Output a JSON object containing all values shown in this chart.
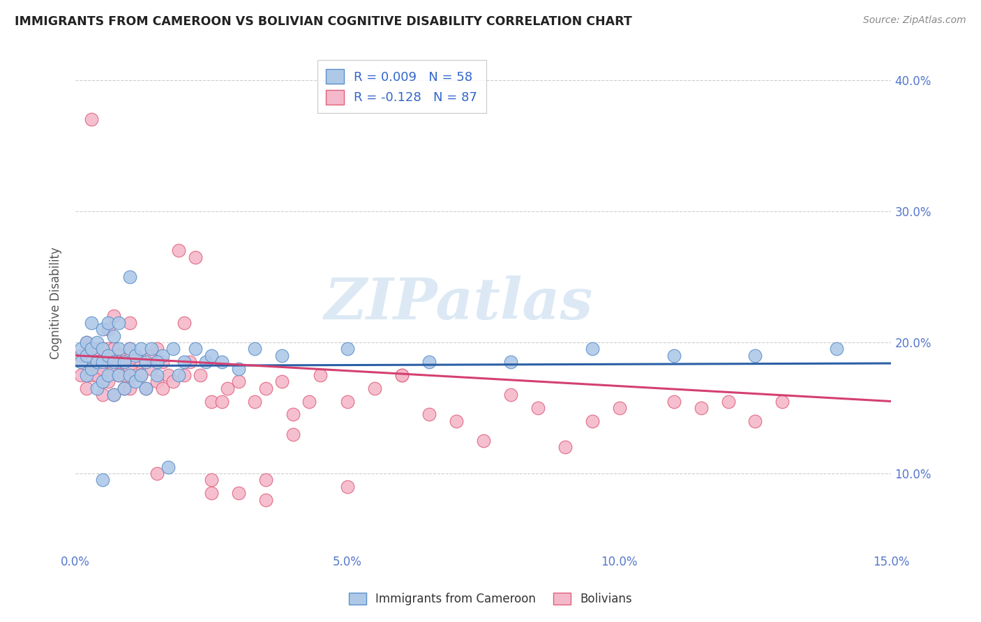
{
  "title": "IMMIGRANTS FROM CAMEROON VS BOLIVIAN COGNITIVE DISABILITY CORRELATION CHART",
  "source": "Source: ZipAtlas.com",
  "ylabel": "Cognitive Disability",
  "xlim": [
    0.0,
    0.15
  ],
  "ylim": [
    0.04,
    0.42
  ],
  "xticks": [
    0.0,
    0.05,
    0.1,
    0.15
  ],
  "xtick_labels": [
    "0.0%",
    "5.0%",
    "10.0%",
    "15.0%"
  ],
  "yticks_right": [
    0.1,
    0.2,
    0.3,
    0.4
  ],
  "ytick_labels_right": [
    "10.0%",
    "20.0%",
    "30.0%",
    "40.0%"
  ],
  "watermark": "ZIPatlas",
  "legend_r1": "R = 0.009",
  "legend_n1": "N = 58",
  "legend_r2": "R = -0.128",
  "legend_n2": "N = 87",
  "blue_color": "#aec9e8",
  "pink_color": "#f4b8cb",
  "blue_edge_color": "#5b8fc9",
  "pink_edge_color": "#e0607a",
  "blue_line_color": "#2b5fa5",
  "pink_line_color": "#d44070",
  "title_color": "#222222",
  "source_color": "#888888",
  "axis_tick_color": "#5577cc",
  "ylabel_color": "#555555",
  "background_color": "#ffffff",
  "grid_color": "#cccccc",
  "legend_r_color": "#3366cc",
  "legend_n_color": "#3366cc",
  "blue_line_y0": 0.182,
  "blue_line_y1": 0.184,
  "pink_line_y0": 0.19,
  "pink_line_y1": 0.155,
  "blue_scatter_x": [
    0.001,
    0.001,
    0.002,
    0.002,
    0.002,
    0.003,
    0.003,
    0.003,
    0.004,
    0.004,
    0.004,
    0.005,
    0.005,
    0.005,
    0.005,
    0.006,
    0.006,
    0.006,
    0.007,
    0.007,
    0.007,
    0.008,
    0.008,
    0.008,
    0.009,
    0.009,
    0.01,
    0.01,
    0.01,
    0.011,
    0.011,
    0.012,
    0.012,
    0.013,
    0.013,
    0.014,
    0.015,
    0.016,
    0.017,
    0.018,
    0.019,
    0.02,
    0.022,
    0.024,
    0.025,
    0.027,
    0.03,
    0.033,
    0.038,
    0.05,
    0.065,
    0.08,
    0.095,
    0.11,
    0.125,
    0.14,
    0.005,
    0.015
  ],
  "blue_scatter_y": [
    0.195,
    0.185,
    0.2,
    0.19,
    0.175,
    0.18,
    0.195,
    0.215,
    0.165,
    0.185,
    0.2,
    0.17,
    0.185,
    0.195,
    0.21,
    0.175,
    0.19,
    0.215,
    0.16,
    0.185,
    0.205,
    0.175,
    0.195,
    0.215,
    0.165,
    0.185,
    0.175,
    0.195,
    0.25,
    0.17,
    0.19,
    0.175,
    0.195,
    0.165,
    0.185,
    0.195,
    0.175,
    0.19,
    0.105,
    0.195,
    0.175,
    0.185,
    0.195,
    0.185,
    0.19,
    0.185,
    0.18,
    0.195,
    0.19,
    0.195,
    0.185,
    0.185,
    0.195,
    0.19,
    0.19,
    0.195,
    0.095,
    0.185
  ],
  "pink_scatter_x": [
    0.001,
    0.001,
    0.002,
    0.002,
    0.003,
    0.003,
    0.003,
    0.004,
    0.004,
    0.004,
    0.005,
    0.005,
    0.005,
    0.006,
    0.006,
    0.006,
    0.006,
    0.007,
    0.007,
    0.007,
    0.008,
    0.008,
    0.008,
    0.009,
    0.009,
    0.009,
    0.01,
    0.01,
    0.01,
    0.011,
    0.011,
    0.012,
    0.012,
    0.013,
    0.013,
    0.014,
    0.014,
    0.015,
    0.015,
    0.016,
    0.016,
    0.017,
    0.018,
    0.019,
    0.02,
    0.021,
    0.022,
    0.023,
    0.025,
    0.027,
    0.028,
    0.03,
    0.033,
    0.035,
    0.038,
    0.04,
    0.043,
    0.045,
    0.05,
    0.055,
    0.06,
    0.065,
    0.07,
    0.075,
    0.08,
    0.085,
    0.09,
    0.095,
    0.1,
    0.11,
    0.115,
    0.12,
    0.125,
    0.13,
    0.025,
    0.03,
    0.035,
    0.04,
    0.01,
    0.02,
    0.003,
    0.007,
    0.015,
    0.025,
    0.035,
    0.05,
    0.06
  ],
  "pink_scatter_y": [
    0.19,
    0.175,
    0.2,
    0.165,
    0.18,
    0.195,
    0.175,
    0.185,
    0.195,
    0.175,
    0.16,
    0.18,
    0.195,
    0.185,
    0.195,
    0.21,
    0.17,
    0.16,
    0.18,
    0.195,
    0.175,
    0.19,
    0.185,
    0.175,
    0.165,
    0.185,
    0.195,
    0.165,
    0.18,
    0.175,
    0.19,
    0.175,
    0.185,
    0.165,
    0.185,
    0.18,
    0.19,
    0.17,
    0.195,
    0.165,
    0.185,
    0.175,
    0.17,
    0.27,
    0.175,
    0.185,
    0.265,
    0.175,
    0.155,
    0.155,
    0.165,
    0.17,
    0.155,
    0.165,
    0.17,
    0.145,
    0.155,
    0.175,
    0.155,
    0.165,
    0.175,
    0.145,
    0.14,
    0.125,
    0.16,
    0.15,
    0.12,
    0.14,
    0.15,
    0.155,
    0.15,
    0.155,
    0.14,
    0.155,
    0.085,
    0.085,
    0.08,
    0.13,
    0.215,
    0.215,
    0.37,
    0.22,
    0.1,
    0.095,
    0.095,
    0.09,
    0.175
  ]
}
